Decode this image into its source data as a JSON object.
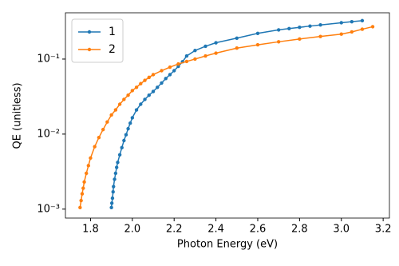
{
  "chart_data": {
    "type": "line",
    "x_label": "Photon Energy (eV)",
    "y_label": "QE (unitless)",
    "log_y": true,
    "legend": "upper left",
    "xlim": [
      1.68,
      3.23
    ],
    "xticks": [
      1.8,
      {
        "value": 2,
        "label": "2.0"
      },
      2.2,
      2.4,
      2.6,
      2.8,
      {
        "value": 3,
        "label": "3.0"
      },
      3.2
    ],
    "ylim": [
      0.00076,
      0.414
    ],
    "yticks": [
      {
        "value": 0.001,
        "label": "10⁻³"
      },
      {
        "value": 0.01,
        "label": "10⁻²"
      },
      {
        "value": 0.1,
        "label": "10⁻¹"
      }
    ],
    "series": [
      {
        "name": "1",
        "color": "#1f77b4",
        "x": [
          1.9,
          1.902,
          1.905,
          1.908,
          1.91,
          1.915,
          1.92,
          1.925,
          1.93,
          1.94,
          1.95,
          1.96,
          1.97,
          1.98,
          1.99,
          2.0,
          2.02,
          2.04,
          2.06,
          2.08,
          2.1,
          2.12,
          2.14,
          2.16,
          2.18,
          2.2,
          2.22,
          2.24,
          2.26,
          2.3,
          2.35,
          2.4,
          2.5,
          2.6,
          2.7,
          2.75,
          2.8,
          2.85,
          2.9,
          3.0,
          3.05,
          3.1
        ],
        "values": [
          0.00105,
          0.0012,
          0.0014,
          0.0017,
          0.002,
          0.0025,
          0.003,
          0.0036,
          0.0042,
          0.0053,
          0.0066,
          0.0082,
          0.0098,
          0.0118,
          0.014,
          0.0165,
          0.021,
          0.025,
          0.029,
          0.033,
          0.037,
          0.042,
          0.048,
          0.055,
          0.062,
          0.07,
          0.08,
          0.092,
          0.11,
          0.13,
          0.148,
          0.165,
          0.19,
          0.22,
          0.245,
          0.255,
          0.265,
          0.275,
          0.285,
          0.305,
          0.315,
          0.325
        ]
      },
      {
        "name": "2",
        "color": "#ff7f0e",
        "x": [
          1.75,
          1.755,
          1.76,
          1.765,
          1.77,
          1.78,
          1.79,
          1.8,
          1.82,
          1.84,
          1.86,
          1.88,
          1.9,
          1.92,
          1.94,
          1.96,
          1.98,
          2.0,
          2.02,
          2.04,
          2.06,
          2.08,
          2.1,
          2.14,
          2.18,
          2.22,
          2.26,
          2.3,
          2.35,
          2.4,
          2.5,
          2.6,
          2.7,
          2.8,
          2.9,
          3.0,
          3.05,
          3.1,
          3.15
        ],
        "values": [
          0.00105,
          0.0013,
          0.0016,
          0.0019,
          0.0023,
          0.003,
          0.0038,
          0.0048,
          0.0068,
          0.009,
          0.0115,
          0.0145,
          0.018,
          0.021,
          0.025,
          0.029,
          0.033,
          0.038,
          0.042,
          0.047,
          0.052,
          0.057,
          0.062,
          0.07,
          0.078,
          0.086,
          0.093,
          0.1,
          0.11,
          0.12,
          0.14,
          0.155,
          0.17,
          0.185,
          0.2,
          0.215,
          0.23,
          0.25,
          0.27
        ]
      }
    ]
  }
}
